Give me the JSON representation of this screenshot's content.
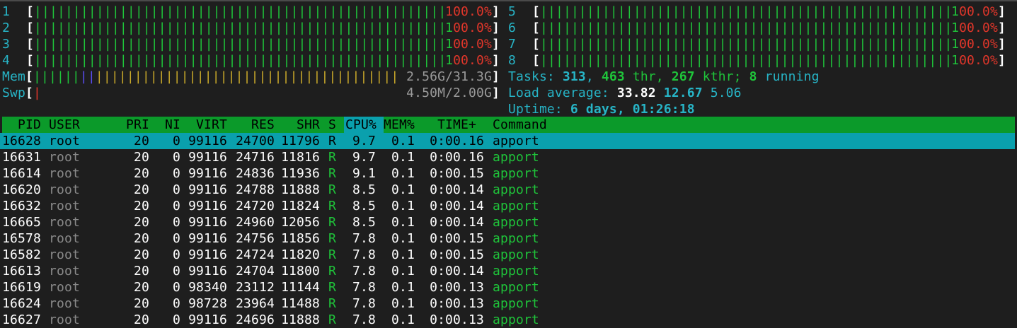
{
  "colors": {
    "background": "#1e1e1e",
    "bar_green": "#1fc43a",
    "bar_red": "#e0362a",
    "label_cyan": "#27b4c6",
    "header_green": "#0b9a2a",
    "selected_row": "#0aa0ad",
    "mem_buffers_blue": "#5a4cf0",
    "mem_cache_yellow": "#c9a92a"
  },
  "cpus": [
    {
      "label": "1",
      "percent": "100.0%",
      "usage": 1.0
    },
    {
      "label": "2",
      "percent": "100.0%",
      "usage": 1.0
    },
    {
      "label": "3",
      "percent": "100.0%",
      "usage": 1.0
    },
    {
      "label": "4",
      "percent": "100.0%",
      "usage": 1.0
    },
    {
      "label": "5",
      "percent": "100.0%",
      "usage": 1.0
    },
    {
      "label": "6",
      "percent": "100.0%",
      "usage": 1.0
    },
    {
      "label": "7",
      "percent": "100.0%",
      "usage": 1.0
    },
    {
      "label": "8",
      "percent": "100.0%",
      "usage": 1.0
    }
  ],
  "mem": {
    "label": "Mem",
    "value": "2.56G/31.3G",
    "used_fraction": 0.12,
    "buffers_fraction": 0.04,
    "cache_fraction": 0.84
  },
  "swp": {
    "label": "Swp",
    "value": "4.50M/2.00G",
    "used_fraction": 0.01
  },
  "tasks": {
    "label": "Tasks: ",
    "count": "313",
    "sep1": ", ",
    "threads": "463",
    "thr_label": " thr, ",
    "kthreads": "267",
    "kthr_label": " kthr; ",
    "running": "8",
    "running_label": " running"
  },
  "load": {
    "label": "Load average: ",
    "one": "33.82",
    "five": "12.67",
    "fifteen": "5.06"
  },
  "uptime": {
    "label": "Uptime: ",
    "value": "6 days, 01:26:18"
  },
  "columns": {
    "pid": "PID",
    "user": "USER",
    "pri": "PRI",
    "ni": "NI",
    "virt": "VIRT",
    "res": "RES",
    "shr": "SHR",
    "s": "S",
    "cpu": "CPU%",
    "mem": "MEM%",
    "time": "TIME+",
    "command": "Command"
  },
  "processes": [
    {
      "pid": "16628",
      "user": "root",
      "pri": "20",
      "ni": "0",
      "virt": "99116",
      "res": "24700",
      "shr": "11796",
      "s": "R",
      "cpu": "9.7",
      "mem": "0.1",
      "time": "0:00.16",
      "command": "apport"
    },
    {
      "pid": "16631",
      "user": "root",
      "pri": "20",
      "ni": "0",
      "virt": "99116",
      "res": "24716",
      "shr": "11816",
      "s": "R",
      "cpu": "9.7",
      "mem": "0.1",
      "time": "0:00.16",
      "command": "apport"
    },
    {
      "pid": "16614",
      "user": "root",
      "pri": "20",
      "ni": "0",
      "virt": "99116",
      "res": "24836",
      "shr": "11936",
      "s": "R",
      "cpu": "9.1",
      "mem": "0.1",
      "time": "0:00.15",
      "command": "apport"
    },
    {
      "pid": "16620",
      "user": "root",
      "pri": "20",
      "ni": "0",
      "virt": "99116",
      "res": "24788",
      "shr": "11888",
      "s": "R",
      "cpu": "8.5",
      "mem": "0.1",
      "time": "0:00.14",
      "command": "apport"
    },
    {
      "pid": "16632",
      "user": "root",
      "pri": "20",
      "ni": "0",
      "virt": "99116",
      "res": "24720",
      "shr": "11824",
      "s": "R",
      "cpu": "8.5",
      "mem": "0.1",
      "time": "0:00.14",
      "command": "apport"
    },
    {
      "pid": "16665",
      "user": "root",
      "pri": "20",
      "ni": "0",
      "virt": "99116",
      "res": "24960",
      "shr": "12056",
      "s": "R",
      "cpu": "8.5",
      "mem": "0.1",
      "time": "0:00.14",
      "command": "apport"
    },
    {
      "pid": "16578",
      "user": "root",
      "pri": "20",
      "ni": "0",
      "virt": "99116",
      "res": "24756",
      "shr": "11856",
      "s": "R",
      "cpu": "7.8",
      "mem": "0.1",
      "time": "0:00.15",
      "command": "apport"
    },
    {
      "pid": "16582",
      "user": "root",
      "pri": "20",
      "ni": "0",
      "virt": "99116",
      "res": "24724",
      "shr": "11820",
      "s": "R",
      "cpu": "7.8",
      "mem": "0.1",
      "time": "0:00.15",
      "command": "apport"
    },
    {
      "pid": "16613",
      "user": "root",
      "pri": "20",
      "ni": "0",
      "virt": "99116",
      "res": "24704",
      "shr": "11800",
      "s": "R",
      "cpu": "7.8",
      "mem": "0.1",
      "time": "0:00.14",
      "command": "apport"
    },
    {
      "pid": "16619",
      "user": "root",
      "pri": "20",
      "ni": "0",
      "virt": "98340",
      "res": "23112",
      "shr": "11144",
      "s": "R",
      "cpu": "7.8",
      "mem": "0.1",
      "time": "0:00.13",
      "command": "apport"
    },
    {
      "pid": "16624",
      "user": "root",
      "pri": "20",
      "ni": "0",
      "virt": "98728",
      "res": "23964",
      "shr": "11488",
      "s": "R",
      "cpu": "7.8",
      "mem": "0.1",
      "time": "0:00.13",
      "command": "apport"
    },
    {
      "pid": "16627",
      "user": "root",
      "pri": "20",
      "ni": "0",
      "virt": "99116",
      "res": "24696",
      "shr": "11888",
      "s": "R",
      "cpu": "7.8",
      "mem": "0.1",
      "time": "0:00.13",
      "command": "apport"
    }
  ]
}
